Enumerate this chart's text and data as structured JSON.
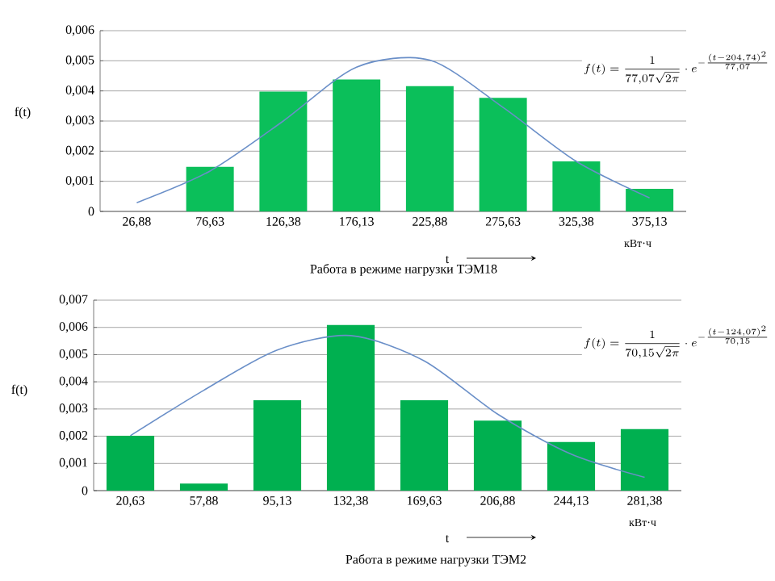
{
  "chart_data": [
    {
      "type": "bar",
      "title": "Работа  в режиме нагрузки ТЭМ18",
      "xlabel": "t",
      "ylabel": "f(t)",
      "categories": [
        "26,88",
        "76,63",
        "126,38",
        "176,13",
        "225,88",
        "275,63",
        "325,38",
        "375,13"
      ],
      "series": [
        {
          "color": "#0bbf5a",
          "values": [
            0,
            0.00148,
            0.00398,
            0.00438,
            0.00416,
            0.00377,
            0.00166,
            0.00075
          ]
        },
        {
          "type": "line",
          "color": "#6a8fc8",
          "values": [
            0.00029,
            0.00134,
            0.003,
            0.00479,
            0.00502,
            0.00345,
            0.00166,
            0.00045
          ]
        }
      ],
      "ylim": [
        0,
        0.006
      ],
      "yticks": [
        0,
        {
          "value": 0.001,
          "label": "0,001"
        },
        {
          "value": 0.002,
          "label": "0,002"
        },
        {
          "value": 0.003,
          "label": "0,003"
        },
        {
          "value": 0.004,
          "label": "0,004"
        },
        {
          "value": 0.005,
          "label": "0,005"
        },
        {
          "value": 0.006,
          "label": "0,006"
        }
      ],
      "grid": "y",
      "annotations": [
        "кВт·ч",
        "f(t)=\\frac{1}{77{,}07\\sqrt{2\\pi}}\\cdot e^{-\\frac{(t-204{,}74)^2}{77{,}07}}"
      ]
    },
    {
      "type": "bar",
      "title": "Работа в режиме нагрузки ТЭМ2",
      "xlabel": "t",
      "ylabel": "f(t)",
      "categories": [
        "20,63",
        "57,88",
        "95,13",
        "132,38",
        "169,63",
        "206,88",
        "244,13",
        "281,38"
      ],
      "series": [
        {
          "color": "#00b050",
          "values": [
            0.00202,
            0.00026,
            0.00332,
            0.00609,
            0.00332,
            0.00257,
            0.00179,
            0.00226
          ]
        },
        {
          "type": "line",
          "color": "#6a8fc8",
          "values": [
            0.00202,
            0.00369,
            0.00517,
            0.0057,
            0.00477,
            0.00281,
            0.00134,
            0.00049
          ]
        }
      ],
      "ylim": [
        0,
        0.007
      ],
      "yticks": [
        0,
        {
          "value": 0.001,
          "label": "0,001"
        },
        {
          "value": 0.002,
          "label": "0,002"
        },
        {
          "value": 0.003,
          "label": "0,003"
        },
        {
          "value": 0.004,
          "label": "0,004"
        },
        {
          "value": 0.005,
          "label": "0,005"
        },
        {
          "value": 0.006,
          "label": "0,006"
        },
        {
          "value": 0.007,
          "label": "0,007"
        }
      ],
      "grid": "y",
      "annotations": [
        "кВт·ч",
        "f(t)=\\frac{1}{70{,}15\\sqrt{2\\pi}}\\cdot e^{-\\frac{(t-124{,}07)^2}{70{,}15}}"
      ]
    }
  ]
}
